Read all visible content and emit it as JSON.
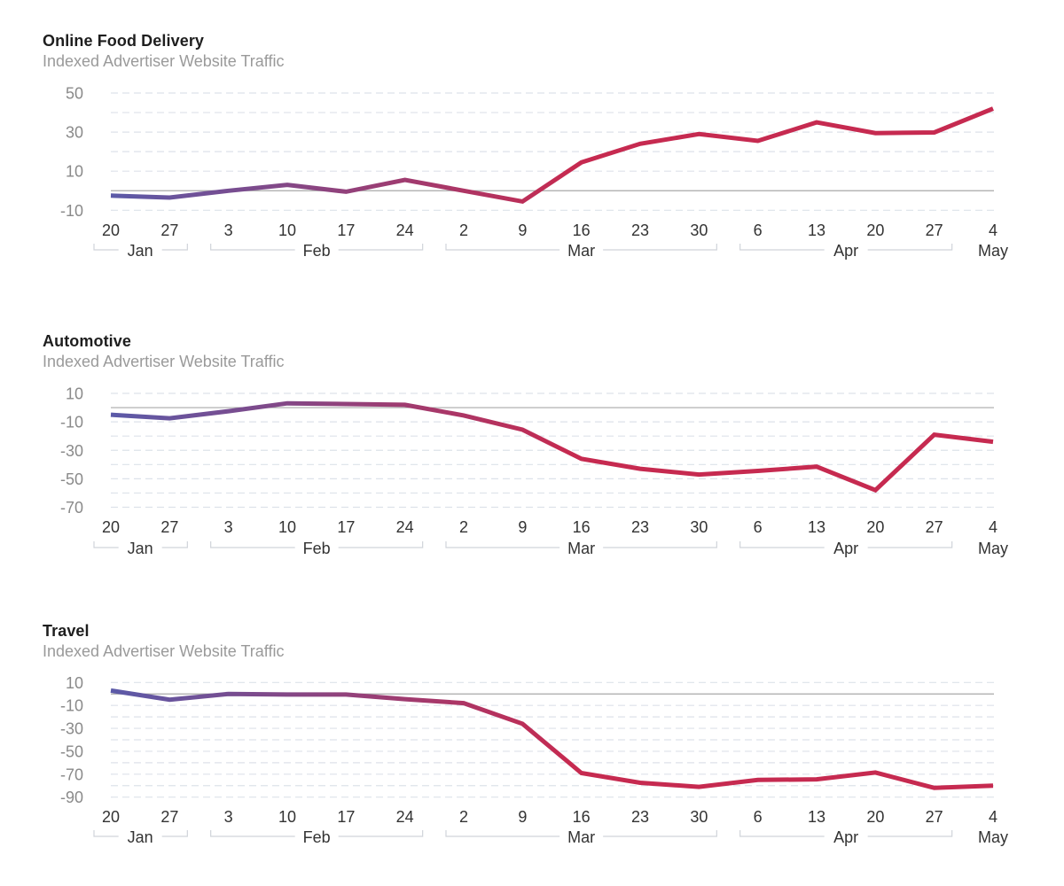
{
  "colors": {
    "line_start": "#5b5aa8",
    "line_end": "#c62a50",
    "title": "#1e1e1e",
    "subtitle": "#9a9a9a",
    "grid": "#dde2ea",
    "zero_line": "#a8a8a8"
  },
  "x_ticks": [
    "20",
    "27",
    "3",
    "10",
    "17",
    "24",
    "2",
    "9",
    "16",
    "23",
    "30",
    "6",
    "13",
    "20",
    "27",
    "4"
  ],
  "months": [
    {
      "label": "Jan",
      "start": 0,
      "end": 1,
      "bracket": true
    },
    {
      "label": "Feb",
      "start": 2,
      "end": 5,
      "bracket": true
    },
    {
      "label": "Mar",
      "start": 6,
      "end": 10,
      "bracket": true
    },
    {
      "label": "Apr",
      "start": 11,
      "end": 14,
      "bracket": true
    },
    {
      "label": "May",
      "start": 15,
      "end": 15,
      "bracket": false
    }
  ],
  "chart_data": [
    {
      "type": "line",
      "title": "Online Food Delivery",
      "subtitle": "Indexed Advertiser Website Traffic",
      "xlabel": "",
      "ylabel": "",
      "categories": [
        "Jan 20",
        "Jan 27",
        "Feb 3",
        "Feb 10",
        "Feb 17",
        "Feb 24",
        "Mar 2",
        "Mar 9",
        "Mar 16",
        "Mar 23",
        "Mar 30",
        "Apr 6",
        "Apr 13",
        "Apr 20",
        "Apr 27",
        "May 4"
      ],
      "series": [
        {
          "name": "Indexed Advertiser Website Traffic",
          "values": [
            -2.5,
            -3.5,
            0,
            3,
            -0.5,
            5.5,
            0,
            -5.5,
            14.5,
            24,
            29,
            25.5,
            35,
            29.5,
            29.8,
            42
          ]
        }
      ],
      "ylim": [
        -10,
        50
      ],
      "y_ticks": [
        50,
        30,
        10,
        -10
      ],
      "grid_step": 10,
      "grid": true,
      "legend": "none"
    },
    {
      "type": "line",
      "title": "Automotive",
      "subtitle": "Indexed Advertiser Website Traffic",
      "xlabel": "",
      "ylabel": "",
      "categories": [
        "Jan 20",
        "Jan 27",
        "Feb 3",
        "Feb 10",
        "Feb 17",
        "Feb 24",
        "Mar 2",
        "Mar 9",
        "Mar 16",
        "Mar 23",
        "Mar 30",
        "Apr 6",
        "Apr 13",
        "Apr 20",
        "Apr 27",
        "May 4"
      ],
      "series": [
        {
          "name": "Indexed Advertiser Website Traffic",
          "values": [
            -5,
            -7.5,
            -2.5,
            3,
            2.5,
            2,
            -5.5,
            -15.5,
            -36,
            -43,
            -47,
            -44.5,
            -41.5,
            -58,
            -19,
            -24
          ]
        }
      ],
      "ylim": [
        -70,
        10
      ],
      "y_ticks": [
        10,
        -10,
        -30,
        -50,
        -70
      ],
      "grid_step": 10,
      "grid": true,
      "legend": "none"
    },
    {
      "type": "line",
      "title": "Travel",
      "subtitle": "Indexed Advertiser Website Traffic",
      "xlabel": "",
      "ylabel": "",
      "categories": [
        "Jan 20",
        "Jan 27",
        "Feb 3",
        "Feb 10",
        "Feb 17",
        "Feb 24",
        "Mar 2",
        "Mar 9",
        "Mar 16",
        "Mar 23",
        "Mar 30",
        "Apr 6",
        "Apr 13",
        "Apr 20",
        "Apr 27",
        "May 4"
      ],
      "series": [
        {
          "name": "Indexed Advertiser Website Traffic",
          "values": [
            3,
            -5,
            0,
            -0.5,
            -0.5,
            -4.5,
            -8,
            -26,
            -69,
            -77.5,
            -81,
            -75,
            -74.5,
            -68.5,
            -82,
            -80
          ]
        }
      ],
      "ylim": [
        -90,
        10
      ],
      "y_ticks": [
        10,
        -10,
        -30,
        -50,
        -70,
        -90
      ],
      "grid_step": 10,
      "grid": true,
      "legend": "none"
    }
  ]
}
